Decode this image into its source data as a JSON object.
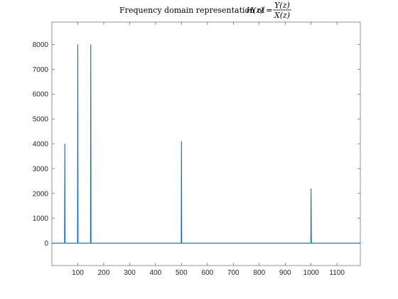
{
  "chart_data": {
    "type": "line",
    "title": {
      "prefix": "Frequency domain representation of",
      "lhs": "H(z) =",
      "numerator": "Y(z)",
      "denominator": "X(z)"
    },
    "xlabel": "",
    "ylabel": "",
    "xlim": [
      0,
      1190
    ],
    "ylim": [
      -900,
      8900
    ],
    "xticks": [
      100,
      200,
      300,
      400,
      500,
      600,
      700,
      800,
      900,
      1000,
      1100
    ],
    "yticks": [
      0,
      1000,
      2000,
      3000,
      4000,
      5000,
      6000,
      7000,
      8000
    ],
    "grid": false,
    "series": [
      {
        "color": "#0072bd",
        "x": [
          0,
          49,
          50,
          51,
          99,
          100,
          101,
          149,
          150,
          151,
          499,
          500,
          501,
          999,
          1000,
          1001,
          1190
        ],
        "y": [
          0,
          0,
          4000,
          0,
          0,
          8000,
          0,
          0,
          8000,
          0,
          0,
          4100,
          0,
          0,
          2200,
          0,
          0
        ]
      }
    ]
  }
}
